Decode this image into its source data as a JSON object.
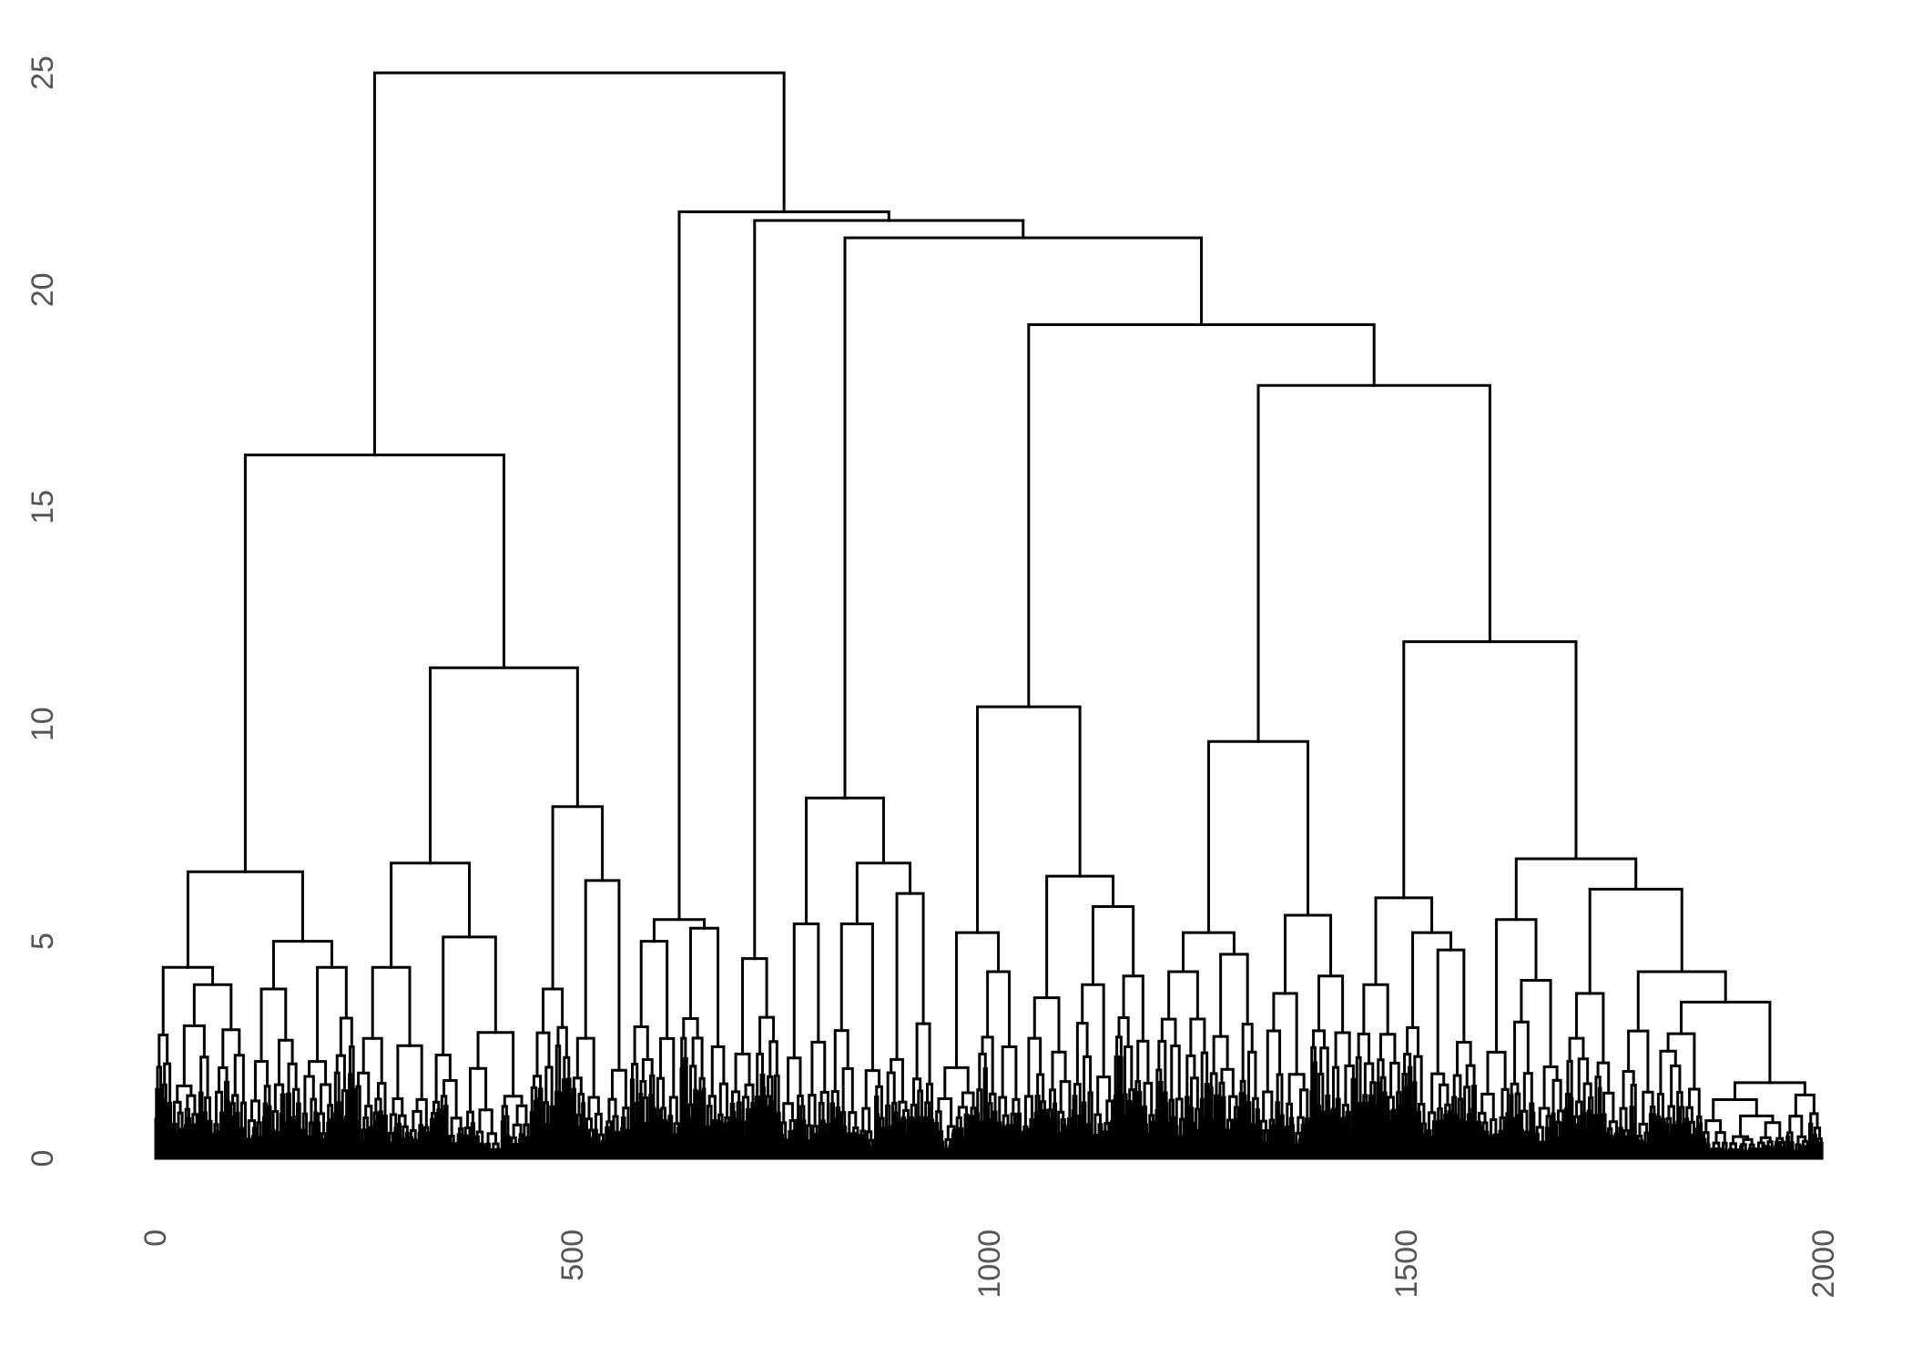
{
  "chart_data": {
    "type": "dendrogram",
    "title": "",
    "xlabel": "",
    "ylabel": "",
    "xlim": [
      0,
      2000
    ],
    "ylim": [
      0,
      25
    ],
    "x_ticks": [
      0,
      500,
      1000,
      1500,
      2000
    ],
    "y_ticks": [
      0,
      5,
      10,
      15,
      20,
      25
    ],
    "grid": false,
    "legend": "none",
    "line_color": "#000000",
    "n_leaves": 2000,
    "merges": [
      {
        "id": "root",
        "height": 25.0,
        "left": "A",
        "right": "B"
      },
      {
        "id": "A",
        "height": 16.2,
        "left": "A1",
        "right": "A2"
      },
      {
        "id": "A1",
        "height": 6.6,
        "left": "A1a",
        "right": "A1b"
      },
      {
        "id": "A1a",
        "height": 4.4,
        "left": "A1a1",
        "right": "A1a2"
      },
      {
        "id": "A1a2",
        "height": 4.0,
        "left": "A1a2x",
        "right": "A1a2y"
      },
      {
        "id": "A1b",
        "height": 5.0,
        "left": "A1b1",
        "right": "A1b2"
      },
      {
        "id": "A1b1",
        "height": 3.9,
        "left": "A1b1x",
        "right": "A1b1y"
      },
      {
        "id": "A1b2",
        "height": 4.4,
        "left": "A1b2x",
        "right": "A1b2y"
      },
      {
        "id": "A2",
        "height": 11.3,
        "left": "A2a",
        "right": "A2b"
      },
      {
        "id": "A2a",
        "height": 6.8,
        "left": "A2a1",
        "right": "A2a2"
      },
      {
        "id": "A2a1",
        "height": 4.4,
        "left": "A2a1x",
        "right": "A2a1y"
      },
      {
        "id": "A2a2",
        "height": 5.1,
        "left": "A2a2x",
        "right": "A2a2y"
      },
      {
        "id": "A2a2y",
        "height": 2.9,
        "left": "A2a2y1",
        "right": "A2a2y2"
      },
      {
        "id": "A2b",
        "height": 8.1,
        "left": "A2b1",
        "right": "A2b2"
      },
      {
        "id": "A2b1",
        "height": 3.9,
        "left": "A2b1x",
        "right": "A2b1y"
      },
      {
        "id": "A2b2",
        "height": 6.4,
        "left": "A2b2x",
        "right": "A2b2y"
      },
      {
        "id": "B",
        "height": 21.8,
        "left": "B1",
        "right": "B2"
      },
      {
        "id": "B1",
        "height": 5.5,
        "left": "B1a",
        "right": "B1b"
      },
      {
        "id": "B1a",
        "height": 5.0,
        "left": "B1a1",
        "right": "B1a2"
      },
      {
        "id": "B1b",
        "height": 5.3,
        "left": "B1b1",
        "right": "B1b2"
      },
      {
        "id": "B2",
        "height": 21.6,
        "left": "B2a",
        "right": "B2b"
      },
      {
        "id": "B2a",
        "height": 4.6,
        "left": "B2a1",
        "right": "B2a2"
      },
      {
        "id": "B2b",
        "height": 21.2,
        "left": "B2b1",
        "right": "B2b2"
      },
      {
        "id": "B2b1",
        "height": 8.3,
        "left": "B2b1a",
        "right": "B2b1b"
      },
      {
        "id": "B2b1a",
        "height": 5.4,
        "left": "B2b1a1",
        "right": "B2b1a2"
      },
      {
        "id": "B2b1b",
        "height": 6.8,
        "left": "B2b1b1",
        "right": "B2b1b2"
      },
      {
        "id": "B2b1b1",
        "height": 5.4,
        "left": "B2b1b1x",
        "right": "B2b1b1y"
      },
      {
        "id": "B2b1b2",
        "height": 6.1,
        "left": "B2b1b2x",
        "right": "B2b1b2y"
      },
      {
        "id": "B2b2",
        "height": 19.2,
        "left": "C",
        "right": "D"
      },
      {
        "id": "C",
        "height": 10.4,
        "left": "C1",
        "right": "C2"
      },
      {
        "id": "C1",
        "height": 5.2,
        "left": "C1a",
        "right": "C1b"
      },
      {
        "id": "C1b",
        "height": 4.3,
        "left": "C1b1",
        "right": "C1b2"
      },
      {
        "id": "C2",
        "height": 6.5,
        "left": "C2a",
        "right": "C2b"
      },
      {
        "id": "C2a",
        "height": 3.7,
        "left": "C2a1",
        "right": "C2a2"
      },
      {
        "id": "C2b",
        "height": 5.8,
        "left": "C2b1",
        "right": "C2b2"
      },
      {
        "id": "C2b1",
        "height": 4.0,
        "left": "C2b1x",
        "right": "C2b1y"
      },
      {
        "id": "C2b2",
        "height": 4.2,
        "left": "C2b2x",
        "right": "C2b2y"
      },
      {
        "id": "D",
        "height": 17.8,
        "left": "D1",
        "right": "D2"
      },
      {
        "id": "D1",
        "height": 9.6,
        "left": "D1a",
        "right": "D1b"
      },
      {
        "id": "D1a",
        "height": 5.2,
        "left": "D1a1",
        "right": "D1a2"
      },
      {
        "id": "D1a1",
        "height": 4.3,
        "left": "D1a1x",
        "right": "D1a1y"
      },
      {
        "id": "D1a2",
        "height": 4.7,
        "left": "D1a2x",
        "right": "D1a2y"
      },
      {
        "id": "D1b",
        "height": 5.6,
        "left": "D1b1",
        "right": "D1b2"
      },
      {
        "id": "D1b1",
        "height": 3.8,
        "left": "D1b1x",
        "right": "D1b1y"
      },
      {
        "id": "D1b2",
        "height": 4.2,
        "left": "D1b2x",
        "right": "D1b2y"
      },
      {
        "id": "D2",
        "height": 11.9,
        "left": "D2a",
        "right": "D2b"
      },
      {
        "id": "D2a",
        "height": 6.0,
        "left": "D2a1",
        "right": "D2a2"
      },
      {
        "id": "D2a1",
        "height": 4.0,
        "left": "D2a1x",
        "right": "D2a1y"
      },
      {
        "id": "D2a2",
        "height": 5.2,
        "left": "D2a2x",
        "right": "D2a2y"
      },
      {
        "id": "D2a2y",
        "height": 4.8,
        "left": "D2a2y1",
        "right": "D2a2y2"
      },
      {
        "id": "D2b",
        "height": 6.9,
        "left": "D2b1",
        "right": "D2b2"
      },
      {
        "id": "D2b1",
        "height": 5.5,
        "left": "D2b1x",
        "right": "D2b1y"
      },
      {
        "id": "D2b1y",
        "height": 4.1,
        "left": "D2b1y1",
        "right": "D2b1y2"
      },
      {
        "id": "D2b2",
        "height": 6.2,
        "left": "D2b2x",
        "right": "D2b2y"
      },
      {
        "id": "D2b2x",
        "height": 3.8,
        "left": "D2b2x1",
        "right": "D2b2x2"
      },
      {
        "id": "D2b2y",
        "height": 4.3,
        "left": "D2b2y1",
        "right": "D2b2y2"
      },
      {
        "id": "D2b2y2",
        "height": 3.6,
        "left": "D2b2y2a",
        "right": "D2b2y2b"
      }
    ],
    "cluster_spans": {
      "A1a1": [
        0,
        20
      ],
      "A1a2x": [
        20,
        70
      ],
      "A1a2y": [
        70,
        110
      ],
      "A1b1x": [
        110,
        140
      ],
      "A1b1y": [
        140,
        175
      ],
      "A1b2x": [
        175,
        215
      ],
      "A1b2y": [
        215,
        240
      ],
      "A2a1x": [
        240,
        280
      ],
      "A2a1y": [
        280,
        330
      ],
      "A2a2x": [
        330,
        370
      ],
      "A2a2y1": [
        370,
        415
      ],
      "A2a2y2": [
        415,
        450
      ],
      "A2b1x": [
        450,
        480
      ],
      "A2b1y": [
        480,
        500
      ],
      "A2b2x": [
        500,
        540
      ],
      "A2b2y": [
        540,
        570
      ],
      "B1a1": [
        570,
        600
      ],
      "B1a2": [
        600,
        630
      ],
      "B1b1": [
        630,
        660
      ],
      "B1b2": [
        660,
        690
      ],
      "B2a1": [
        690,
        720
      ],
      "B2a2": [
        720,
        750
      ],
      "B2b1a1": [
        750,
        780
      ],
      "B2b1a2": [
        780,
        810
      ],
      "B2b1b1x": [
        810,
        845
      ],
      "B2b1b1y": [
        845,
        875
      ],
      "B2b1b2x": [
        875,
        905
      ],
      "B2b1b2y": [
        905,
        935
      ],
      "C1a": [
        935,
        985
      ],
      "C1b1": [
        985,
        1010
      ],
      "C1b2": [
        1010,
        1040
      ],
      "C2a1": [
        1040,
        1070
      ],
      "C2a2": [
        1070,
        1100
      ],
      "C2b1x": [
        1100,
        1125
      ],
      "C2b1y": [
        1125,
        1150
      ],
      "C2b2x": [
        1150,
        1175
      ],
      "C2b2y": [
        1175,
        1200
      ],
      "D1a1x": [
        1200,
        1235
      ],
      "D1a1y": [
        1235,
        1265
      ],
      "D1a2x": [
        1265,
        1300
      ],
      "D1a2y": [
        1300,
        1325
      ],
      "D1b1x": [
        1325,
        1355
      ],
      "D1b1y": [
        1355,
        1385
      ],
      "D1b2x": [
        1385,
        1410
      ],
      "D1b2y": [
        1410,
        1440
      ],
      "D2a1x": [
        1440,
        1465
      ],
      "D2a1y": [
        1465,
        1495
      ],
      "D2a2x": [
        1495,
        1525
      ],
      "D2a2y1": [
        1525,
        1555
      ],
      "D2a2y2": [
        1555,
        1585
      ],
      "D2b1x": [
        1585,
        1625
      ],
      "D2b1y1": [
        1625,
        1655
      ],
      "D2b1y2": [
        1655,
        1690
      ],
      "D2b2x1": [
        1690,
        1725
      ],
      "D2b2x2": [
        1725,
        1755
      ],
      "D2b2y1": [
        1755,
        1800
      ],
      "D2b2y2a": [
        1800,
        1855
      ],
      "D2b2y2b": [
        1855,
        2000
      ]
    },
    "low_level_max_height": 3.5
  }
}
